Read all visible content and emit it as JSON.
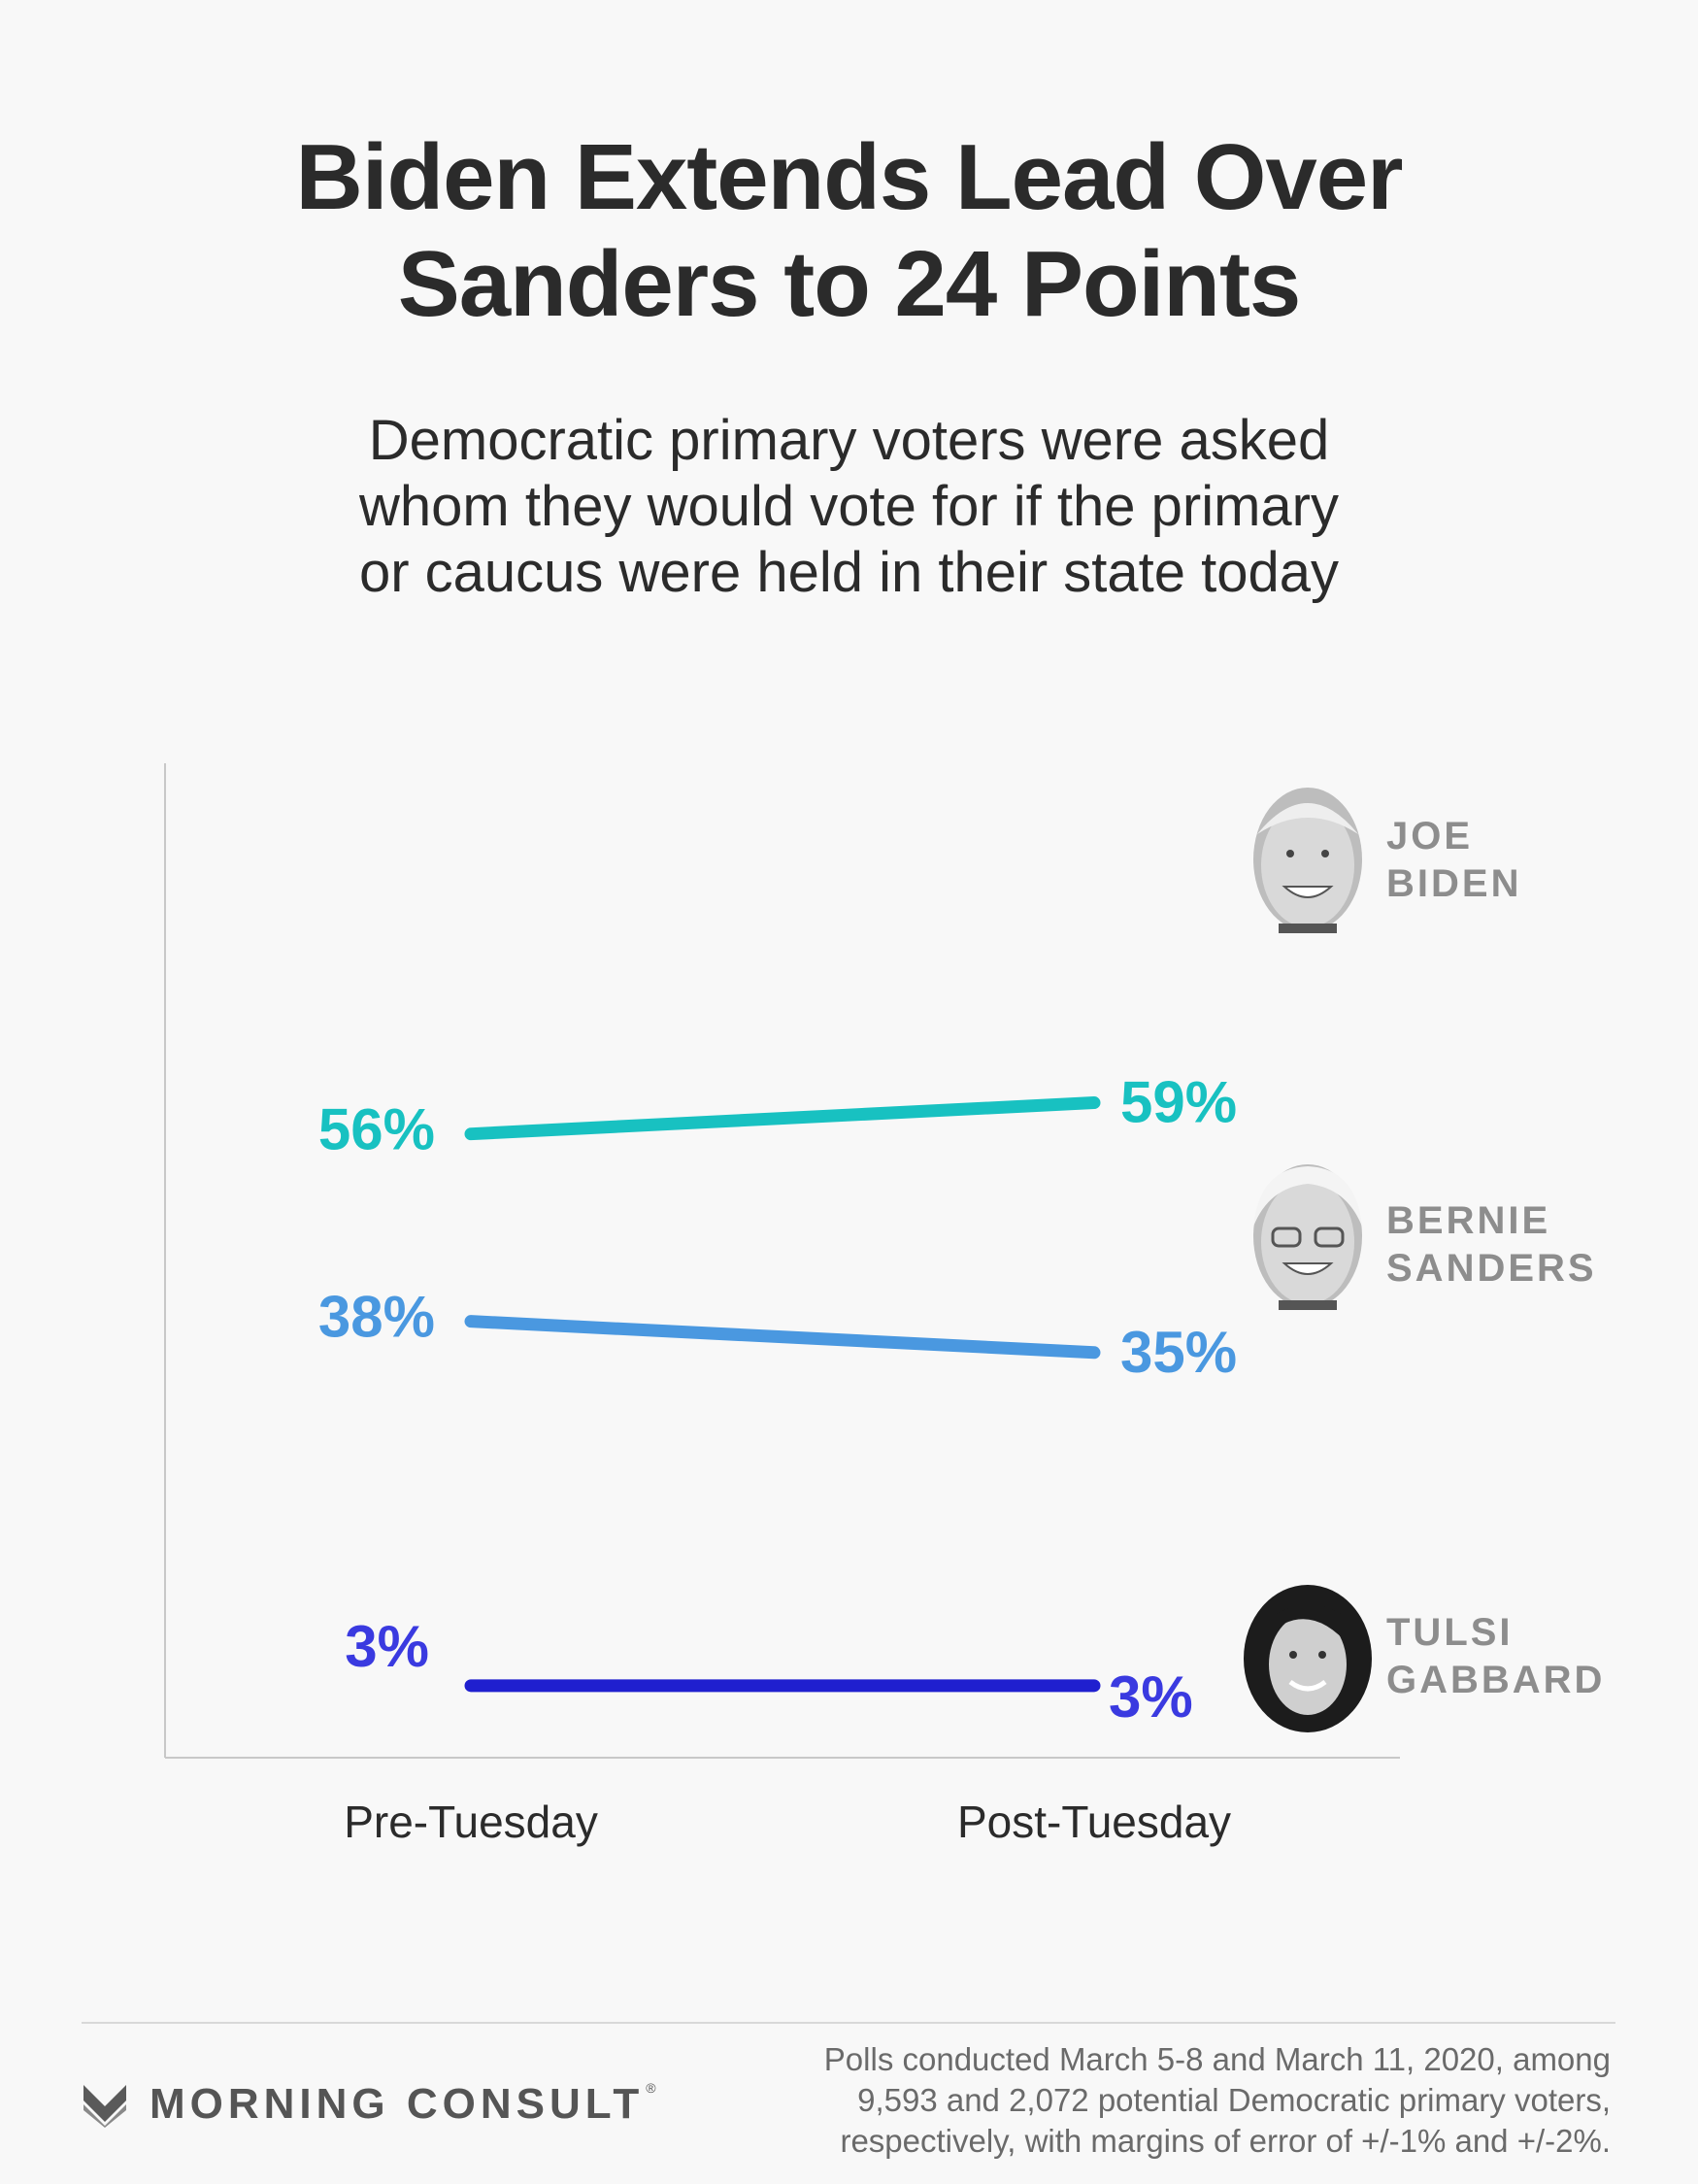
{
  "title": "Biden Extends Lead Over\nSanders to 24 Points",
  "subtitle": "Democratic primary voters were asked\nwhom they would vote for if the primary\nor caucus were held in their state today",
  "chart_data": {
    "type": "line",
    "categories": [
      "Pre-Tuesday",
      "Post-Tuesday"
    ],
    "series": [
      {
        "name": "JOE BIDEN",
        "name_lines": [
          "JOE",
          "BIDEN"
        ],
        "values": [
          56,
          59
        ],
        "labels": [
          "56%",
          "59%"
        ],
        "color": "#18c1c1",
        "avatar_icon": "joe-biden-portrait-icon"
      },
      {
        "name": "BERNIE SANDERS",
        "name_lines": [
          "BERNIE",
          "SANDERS"
        ],
        "values": [
          38,
          35
        ],
        "labels": [
          "38%",
          "35%"
        ],
        "color": "#4a98e0",
        "avatar_icon": "bernie-sanders-portrait-icon"
      },
      {
        "name": "TULSI GABBARD",
        "name_lines": [
          "TULSI",
          "GABBARD"
        ],
        "values": [
          3,
          3
        ],
        "labels": [
          "3%",
          "3%"
        ],
        "color": "#1f1fcf",
        "label_color": "#3a3ae0",
        "avatar_icon": "tulsi-gabbard-portrait-icon"
      }
    ],
    "name_color": "#8d8d8d",
    "axis_color": "#c8c8c8",
    "xlabel": "",
    "ylabel": "",
    "grid": false,
    "legend": "direct labels at right"
  },
  "footer": {
    "brand": "MORNING CONSULT",
    "brand_mark": "®",
    "brand_icon": "morning-consult-logo-icon",
    "source": "Polls conducted March 5-8 and March 11, 2020, among\n9,593 and 2,072 potential Democratic primary voters,\nrespectively, with margins of error of +/-1% and +/-2%."
  }
}
